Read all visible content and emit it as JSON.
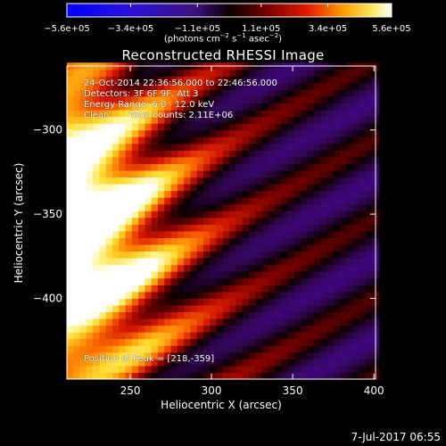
{
  "chart_data": {
    "type": "heatmap",
    "title": "Reconstructed RHESSI Image",
    "xlabel": "Heliocentric X (arcsec)",
    "ylabel": "Heliocentric Y (arcsec)",
    "xlim": [
      211,
      401
    ],
    "ylim": [
      -448,
      -262
    ],
    "x_ticks": [
      250,
      300,
      350,
      400
    ],
    "y_ticks": [
      -300,
      -350,
      -400
    ],
    "y_tick_labels": [
      "−300",
      "−350",
      "−400"
    ],
    "colorbar": {
      "range": [
        -560000.0,
        560000.0
      ],
      "tick_values": [
        -560000.0,
        -340000.0,
        -110000.0,
        110000.0,
        340000.0,
        560000.0
      ],
      "tick_labels": [
        "−5.6e+05",
        "−3.4e+05",
        "−1.1e+05",
        "1.1e+05",
        "3.4e+05",
        "5.6e+05"
      ],
      "units_prefix": "(photons cm",
      "units_exp1": "−2",
      "units_mid": " s",
      "units_exp2": "−1",
      "units_mid2": " asec",
      "units_exp3": "−2",
      "units_suffix": ")",
      "colormap": "hot-blue-purple"
    },
    "image_model": {
      "peak": [
        218,
        -359
      ],
      "peak_value": 560000.0,
      "pixel_size_arcsec": 4,
      "stripe_orientation": "diagonal",
      "background_min": -560000.0
    },
    "annotations": {
      "time_range": "24-Oct-2014 22:36:56.000 to 22:46:56.000",
      "detectors": "Detectors: 3F 6F 9F, Att 3",
      "energy_range": "Energy Range: 6.0 - 12.0 keV",
      "clean": "Clean",
      "total_counts": "Total counts: 2.11E+06",
      "peak_position": "Position of Peak = [218,-359]"
    },
    "footer_date": "7-Jul-2017 06:55"
  }
}
